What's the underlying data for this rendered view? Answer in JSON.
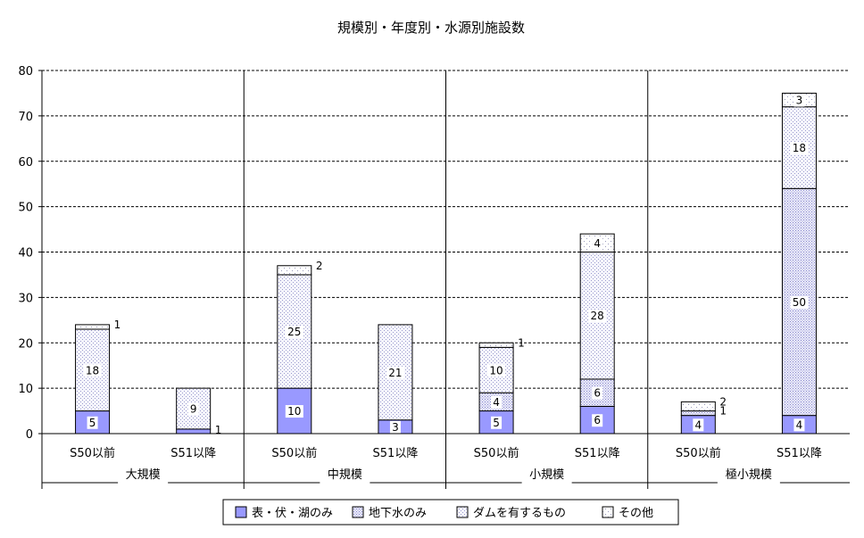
{
  "chart_data": {
    "type": "bar",
    "stacked": true,
    "title": "規模別・年度別・水源別施設数",
    "ylim": [
      0,
      80
    ],
    "yticks": [
      0,
      10,
      20,
      30,
      40,
      50,
      60,
      70,
      80
    ],
    "grid": true,
    "legend_position": "bottom",
    "groups": [
      {
        "name": "大規模",
        "categories": [
          "S50以前",
          "S51以降"
        ]
      },
      {
        "name": "中規模",
        "categories": [
          "S50以前",
          "S51以降"
        ]
      },
      {
        "name": "小規模",
        "categories": [
          "S50以前",
          "S51以降"
        ]
      },
      {
        "name": "極小規模",
        "categories": [
          "S50以前",
          "S51以降"
        ]
      }
    ],
    "series": [
      {
        "name": "表・伏・湖のみ",
        "color": "#9999ff",
        "values": [
          5,
          1,
          10,
          3,
          5,
          6,
          4,
          4
        ]
      },
      {
        "name": "地下水のみ",
        "color": "#ccccff",
        "values": [
          0,
          0,
          0,
          0,
          4,
          6,
          1,
          50
        ]
      },
      {
        "name": "ダムを有するもの",
        "color": "#e8e8f8",
        "values": [
          18,
          9,
          25,
          21,
          10,
          28,
          0,
          18
        ]
      },
      {
        "name": "その他",
        "color": "#ffffff",
        "values": [
          1,
          0,
          2,
          0,
          1,
          4,
          2,
          3
        ]
      }
    ]
  }
}
